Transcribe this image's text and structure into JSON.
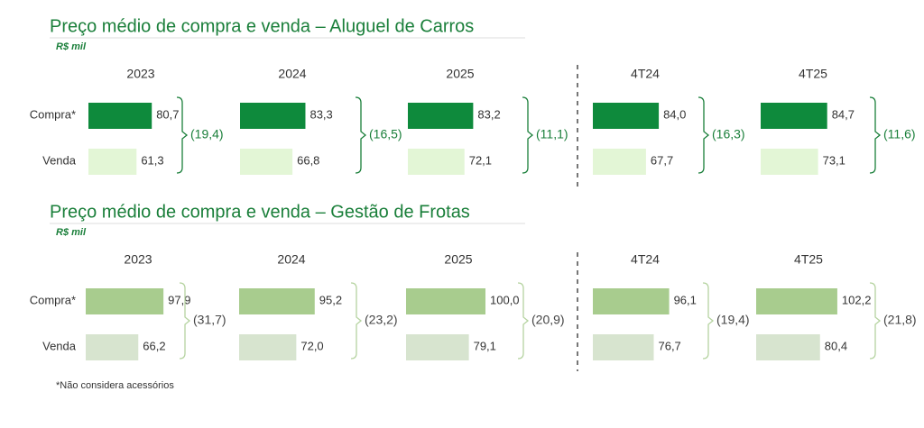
{
  "chart_data": [
    {
      "type": "bar",
      "title": "Preço médio de compra e venda – Aluguel de Carros",
      "subtitle": "R$ mil",
      "categories": [
        "Compra*",
        "Venda"
      ],
      "colors": [
        "#0e8a3c",
        "#e3f6d6"
      ],
      "series": [
        {
          "name": "2023",
          "values": [
            80.7,
            61.3
          ],
          "value_labels": [
            "80,7",
            "61,3"
          ],
          "difference": -19.4,
          "difference_label": "(19,4)"
        },
        {
          "name": "2024",
          "values": [
            83.3,
            66.8
          ],
          "value_labels": [
            "83,3",
            "66,8"
          ],
          "difference": -16.5,
          "difference_label": "(16,5)"
        },
        {
          "name": "2025",
          "values": [
            83.2,
            72.1
          ],
          "value_labels": [
            "83,2",
            "72,1"
          ],
          "difference": -11.1,
          "difference_label": "(11,1)"
        },
        {
          "name": "4T24",
          "values": [
            84.0,
            67.7
          ],
          "value_labels": [
            "84,0",
            "67,7"
          ],
          "difference": -16.3,
          "difference_label": "(16,3)"
        },
        {
          "name": "4T25",
          "values": [
            84.7,
            73.1
          ],
          "value_labels": [
            "84,7",
            "73,1"
          ],
          "difference": -11.6,
          "difference_label": "(11,6)"
        }
      ]
    },
    {
      "type": "bar",
      "title": "Preço médio de compra e venda – Gestão de Frotas",
      "subtitle": "R$ mil",
      "categories": [
        "Compra*",
        "Venda"
      ],
      "colors": [
        "#a8cc8e",
        "#d7e4cf"
      ],
      "series": [
        {
          "name": "2023",
          "values": [
            97.9,
            66.2
          ],
          "value_labels": [
            "97,9",
            "66,2"
          ],
          "difference": -31.7,
          "difference_label": "(31,7)"
        },
        {
          "name": "2024",
          "values": [
            95.2,
            72.0
          ],
          "value_labels": [
            "95,2",
            "72,0"
          ],
          "difference": -23.2,
          "difference_label": "(23,2)"
        },
        {
          "name": "2025",
          "values": [
            100.0,
            79.1
          ],
          "value_labels": [
            "100,0",
            "79,1"
          ],
          "difference": -20.9,
          "difference_label": "(20,9)"
        },
        {
          "name": "4T24",
          "values": [
            96.1,
            76.7
          ],
          "value_labels": [
            "96,1",
            "76,7"
          ],
          "difference": -19.4,
          "difference_label": "(19,4)"
        },
        {
          "name": "4T25",
          "values": [
            102.2,
            80.4
          ],
          "value_labels": [
            "102,2",
            "80,4"
          ],
          "difference": -21.8,
          "difference_label": "(21,8)"
        }
      ]
    }
  ],
  "footnote": "*Não considera acessórios"
}
